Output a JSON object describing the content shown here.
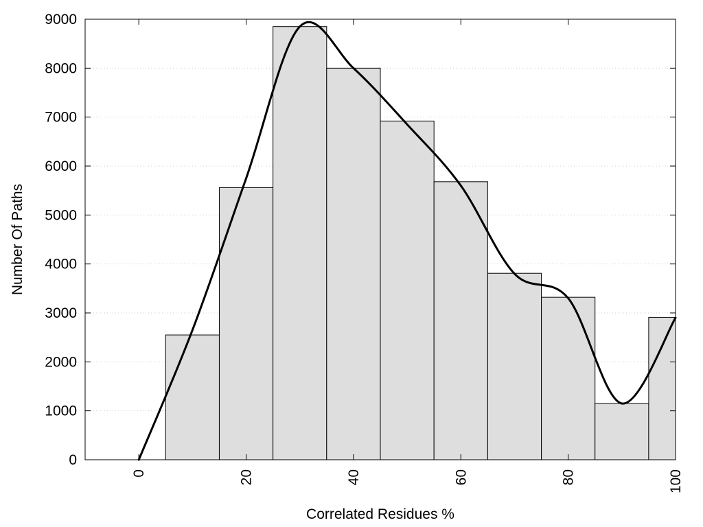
{
  "chart_data": {
    "type": "bar",
    "xlabel": "Correlated Residues %",
    "ylabel": "Number Of Paths",
    "xlim": [
      -10,
      100
    ],
    "ylim": [
      0,
      9000
    ],
    "x_ticks": [
      0,
      20,
      40,
      60,
      80,
      100
    ],
    "y_ticks": [
      0,
      1000,
      2000,
      3000,
      4000,
      5000,
      6000,
      7000,
      8000,
      9000
    ],
    "grid": "horizontal-dotted",
    "bar_color": "#dedede",
    "line_color": "#000000",
    "bars": [
      {
        "x_start": 5,
        "x_end": 15,
        "value": 2550
      },
      {
        "x_start": 15,
        "x_end": 25,
        "value": 5560
      },
      {
        "x_start": 25,
        "x_end": 35,
        "value": 8850
      },
      {
        "x_start": 35,
        "x_end": 45,
        "value": 8000
      },
      {
        "x_start": 45,
        "x_end": 55,
        "value": 6920
      },
      {
        "x_start": 55,
        "x_end": 65,
        "value": 5680
      },
      {
        "x_start": 65,
        "x_end": 75,
        "value": 3810
      },
      {
        "x_start": 75,
        "x_end": 85,
        "value": 3320
      },
      {
        "x_start": 85,
        "x_end": 95,
        "value": 1150
      },
      {
        "x_start": 95,
        "x_end": 100,
        "value": 2910
      }
    ],
    "curve": [
      {
        "x": 0,
        "y": 0
      },
      {
        "x": 10,
        "y": 2650
      },
      {
        "x": 20,
        "y": 5750
      },
      {
        "x": 30,
        "y": 8850
      },
      {
        "x": 40,
        "y": 8000
      },
      {
        "x": 50,
        "y": 6850
      },
      {
        "x": 60,
        "y": 5600
      },
      {
        "x": 70,
        "y": 3800
      },
      {
        "x": 80,
        "y": 3300
      },
      {
        "x": 90,
        "y": 1150
      },
      {
        "x": 100,
        "y": 2900
      }
    ]
  }
}
